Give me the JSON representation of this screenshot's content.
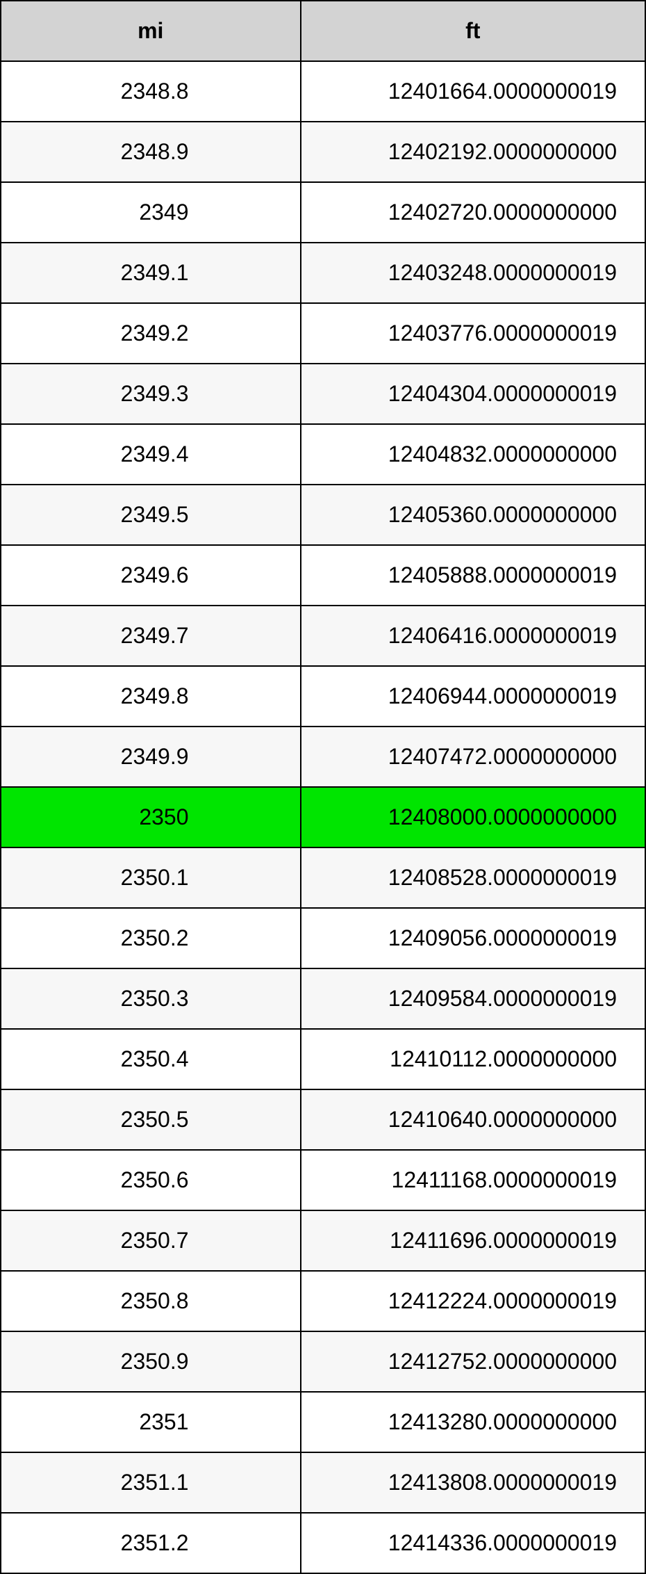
{
  "table": {
    "type": "table",
    "columns": [
      "mi",
      "ft"
    ],
    "header_bg": "#d3d3d3",
    "header_fontsize": 32,
    "header_fontweight": "bold",
    "border_color": "#000000",
    "cell_fontsize": 32,
    "row_bg_odd": "#ffffff",
    "row_bg_even": "#f7f7f7",
    "highlight_bg": "#00e500",
    "col_widths": [
      "46.5%",
      "53.5%"
    ],
    "col_align": [
      "right",
      "right"
    ],
    "rows": [
      {
        "mi": "2348.8",
        "ft": "12401664.0000000019",
        "highlight": false
      },
      {
        "mi": "2348.9",
        "ft": "12402192.0000000000",
        "highlight": false
      },
      {
        "mi": "2349",
        "ft": "12402720.0000000000",
        "highlight": false
      },
      {
        "mi": "2349.1",
        "ft": "12403248.0000000019",
        "highlight": false
      },
      {
        "mi": "2349.2",
        "ft": "12403776.0000000019",
        "highlight": false
      },
      {
        "mi": "2349.3",
        "ft": "12404304.0000000019",
        "highlight": false
      },
      {
        "mi": "2349.4",
        "ft": "12404832.0000000000",
        "highlight": false
      },
      {
        "mi": "2349.5",
        "ft": "12405360.0000000000",
        "highlight": false
      },
      {
        "mi": "2349.6",
        "ft": "12405888.0000000019",
        "highlight": false
      },
      {
        "mi": "2349.7",
        "ft": "12406416.0000000019",
        "highlight": false
      },
      {
        "mi": "2349.8",
        "ft": "12406944.0000000019",
        "highlight": false
      },
      {
        "mi": "2349.9",
        "ft": "12407472.0000000000",
        "highlight": false
      },
      {
        "mi": "2350",
        "ft": "12408000.0000000000",
        "highlight": true
      },
      {
        "mi": "2350.1",
        "ft": "12408528.0000000019",
        "highlight": false
      },
      {
        "mi": "2350.2",
        "ft": "12409056.0000000019",
        "highlight": false
      },
      {
        "mi": "2350.3",
        "ft": "12409584.0000000019",
        "highlight": false
      },
      {
        "mi": "2350.4",
        "ft": "12410112.0000000000",
        "highlight": false
      },
      {
        "mi": "2350.5",
        "ft": "12410640.0000000000",
        "highlight": false
      },
      {
        "mi": "2350.6",
        "ft": "12411168.0000000019",
        "highlight": false
      },
      {
        "mi": "2350.7",
        "ft": "12411696.0000000019",
        "highlight": false
      },
      {
        "mi": "2350.8",
        "ft": "12412224.0000000019",
        "highlight": false
      },
      {
        "mi": "2350.9",
        "ft": "12412752.0000000000",
        "highlight": false
      },
      {
        "mi": "2351",
        "ft": "12413280.0000000000",
        "highlight": false
      },
      {
        "mi": "2351.1",
        "ft": "12413808.0000000019",
        "highlight": false
      },
      {
        "mi": "2351.2",
        "ft": "12414336.0000000019",
        "highlight": false
      }
    ]
  }
}
